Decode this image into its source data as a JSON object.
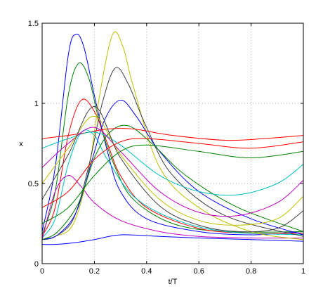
{
  "chart_data": {
    "type": "line",
    "title": "",
    "xlabel": "t/T",
    "ylabel": "x",
    "xlim": [
      0,
      1
    ],
    "ylim": [
      0,
      1.5
    ],
    "x_ticks": [
      0,
      0.2,
      0.4,
      0.6,
      0.8,
      1
    ],
    "x_tick_labels": [
      "0",
      "0.2",
      "0.4",
      "0.6",
      "0.8",
      "1"
    ],
    "y_ticks": [
      0,
      0.5,
      1,
      1.5
    ],
    "y_tick_labels": [
      "0",
      "0.5",
      "1",
      "1.5"
    ],
    "grid": "dotted",
    "legend": "none",
    "colors": [
      "#0000ff",
      "#008000",
      "#ff0000",
      "#00bfbf",
      "#bf00bf",
      "#bfbf00",
      "#404040"
    ],
    "series": [
      {
        "x": [
          0,
          0.05,
          0.1,
          0.13,
          0.16,
          0.2,
          0.25,
          0.3,
          0.4,
          0.6,
          0.8,
          1
        ],
        "y": [
          0.2,
          0.6,
          1.3,
          1.43,
          1.35,
          1.05,
          0.7,
          0.45,
          0.28,
          0.2,
          0.18,
          0.2
        ]
      },
      {
        "x": [
          0,
          0.05,
          0.1,
          0.14,
          0.18,
          0.22,
          0.28,
          0.35,
          0.5,
          0.7,
          1
        ],
        "y": [
          0.18,
          0.45,
          1.05,
          1.25,
          1.15,
          0.88,
          0.6,
          0.4,
          0.25,
          0.2,
          0.2
        ]
      },
      {
        "x": [
          0,
          0.05,
          0.1,
          0.15,
          0.2,
          0.25,
          0.3,
          0.4,
          0.6,
          0.8,
          1
        ],
        "y": [
          0.17,
          0.35,
          0.8,
          1.02,
          0.95,
          0.75,
          0.55,
          0.35,
          0.22,
          0.19,
          0.19
        ]
      },
      {
        "x": [
          0,
          0.05,
          0.1,
          0.15,
          0.2,
          0.25,
          0.35,
          0.5,
          0.7,
          1
        ],
        "y": [
          0.16,
          0.28,
          0.62,
          0.82,
          0.8,
          0.65,
          0.42,
          0.28,
          0.2,
          0.18
        ]
      },
      {
        "x": [
          0,
          0.05,
          0.1,
          0.15,
          0.2,
          0.3,
          0.45,
          0.6,
          0.8,
          1
        ],
        "y": [
          0.15,
          0.45,
          0.55,
          0.48,
          0.38,
          0.27,
          0.2,
          0.17,
          0.16,
          0.16
        ]
      },
      {
        "x": [
          0,
          0.05,
          0.12,
          0.18,
          0.22,
          0.27,
          0.31,
          0.35,
          0.45,
          0.6,
          0.8,
          1
        ],
        "y": [
          0.15,
          0.17,
          0.25,
          0.6,
          1.05,
          1.43,
          1.35,
          1.1,
          0.6,
          0.35,
          0.2,
          0.15
        ]
      },
      {
        "x": [
          0,
          0.05,
          0.12,
          0.18,
          0.23,
          0.28,
          0.33,
          0.4,
          0.5,
          0.7,
          1
        ],
        "y": [
          0.15,
          0.17,
          0.28,
          0.62,
          1.0,
          1.22,
          1.12,
          0.85,
          0.55,
          0.3,
          0.17
        ]
      },
      {
        "x": [
          0,
          0.06,
          0.13,
          0.19,
          0.24,
          0.3,
          0.36,
          0.45,
          0.6,
          0.8,
          1
        ],
        "y": [
          0.15,
          0.18,
          0.32,
          0.64,
          0.9,
          1.02,
          0.92,
          0.7,
          0.45,
          0.28,
          0.18
        ]
      },
      {
        "x": [
          0,
          0.06,
          0.14,
          0.2,
          0.26,
          0.33,
          0.42,
          0.55,
          0.75,
          1
        ],
        "y": [
          0.15,
          0.2,
          0.38,
          0.66,
          0.82,
          0.86,
          0.75,
          0.55,
          0.35,
          0.2
        ]
      },
      {
        "x": [
          0,
          0.05,
          0.1,
          0.18,
          0.25,
          0.35,
          0.5,
          0.7,
          0.85,
          1
        ],
        "y": [
          0.78,
          0.79,
          0.8,
          0.82,
          0.84,
          0.84,
          0.8,
          0.77,
          0.78,
          0.8
        ]
      },
      {
        "x": [
          0,
          0.1,
          0.2,
          0.3,
          0.45,
          0.6,
          0.75,
          0.9,
          1
        ],
        "y": [
          0.72,
          0.78,
          0.82,
          0.74,
          0.55,
          0.45,
          0.43,
          0.5,
          0.62
        ]
      },
      {
        "x": [
          0,
          0.1,
          0.2,
          0.3,
          0.45,
          0.6,
          0.75,
          0.9,
          1
        ],
        "y": [
          0.6,
          0.75,
          0.85,
          0.7,
          0.45,
          0.32,
          0.3,
          0.38,
          0.52
        ]
      },
      {
        "x": [
          0,
          0.1,
          0.2,
          0.3,
          0.45,
          0.6,
          0.75,
          0.9,
          1
        ],
        "y": [
          0.5,
          0.72,
          0.92,
          0.68,
          0.4,
          0.27,
          0.24,
          0.28,
          0.42
        ]
      },
      {
        "x": [
          0,
          0.1,
          0.2,
          0.3,
          0.45,
          0.6,
          0.75,
          0.9,
          1
        ],
        "y": [
          0.4,
          0.68,
          0.98,
          0.66,
          0.36,
          0.24,
          0.2,
          0.22,
          0.33
        ]
      },
      {
        "x": [
          0,
          0.05,
          0.12,
          0.2,
          0.3,
          0.45,
          0.6,
          0.8,
          1
        ],
        "y": [
          0.12,
          0.12,
          0.13,
          0.15,
          0.18,
          0.17,
          0.16,
          0.15,
          0.14
        ]
      },
      {
        "x": [
          0,
          0.1,
          0.2,
          0.3,
          0.4,
          0.6,
          0.8,
          1
        ],
        "y": [
          0.25,
          0.35,
          0.55,
          0.7,
          0.74,
          0.7,
          0.66,
          0.7
        ]
      },
      {
        "x": [
          0,
          0.1,
          0.2,
          0.3,
          0.4,
          0.6,
          0.8,
          1
        ],
        "y": [
          0.35,
          0.45,
          0.65,
          0.76,
          0.78,
          0.75,
          0.72,
          0.76
        ]
      }
    ]
  }
}
